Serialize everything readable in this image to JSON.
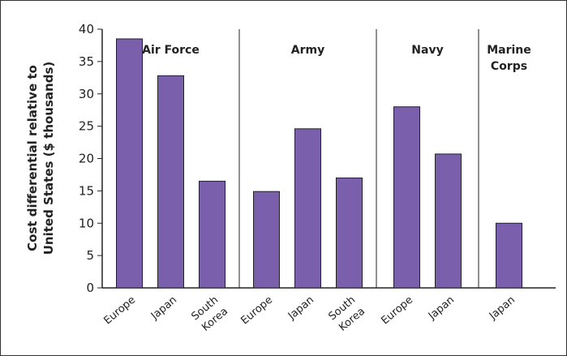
{
  "chart_data": {
    "type": "bar",
    "ylabel_line1": "Cost differential relative to",
    "ylabel_line2": "United States ($ thousands)",
    "ylim": [
      0,
      40
    ],
    "yticks": [
      0,
      5,
      10,
      15,
      20,
      25,
      30,
      35,
      40
    ],
    "bar_color": "#7a5fac",
    "groups": [
      {
        "name_lines": [
          "Air Force"
        ],
        "bars": [
          {
            "label_lines": [
              "Europe"
            ],
            "value": 38.5
          },
          {
            "label_lines": [
              "Japan"
            ],
            "value": 32.8
          },
          {
            "label_lines": [
              "South",
              "Korea"
            ],
            "value": 16.5
          }
        ]
      },
      {
        "name_lines": [
          "Army"
        ],
        "bars": [
          {
            "label_lines": [
              "Europe"
            ],
            "value": 14.9
          },
          {
            "label_lines": [
              "Japan"
            ],
            "value": 24.6
          },
          {
            "label_lines": [
              "South",
              "Korea"
            ],
            "value": 17.0
          }
        ]
      },
      {
        "name_lines": [
          "Navy"
        ],
        "bars": [
          {
            "label_lines": [
              "Europe"
            ],
            "value": 28.0
          },
          {
            "label_lines": [
              "Japan"
            ],
            "value": 20.7
          }
        ]
      },
      {
        "name_lines": [
          "Marine",
          "Corps"
        ],
        "bars": [
          {
            "label_lines": [
              "Japan"
            ],
            "value": 10.0
          }
        ]
      }
    ]
  }
}
